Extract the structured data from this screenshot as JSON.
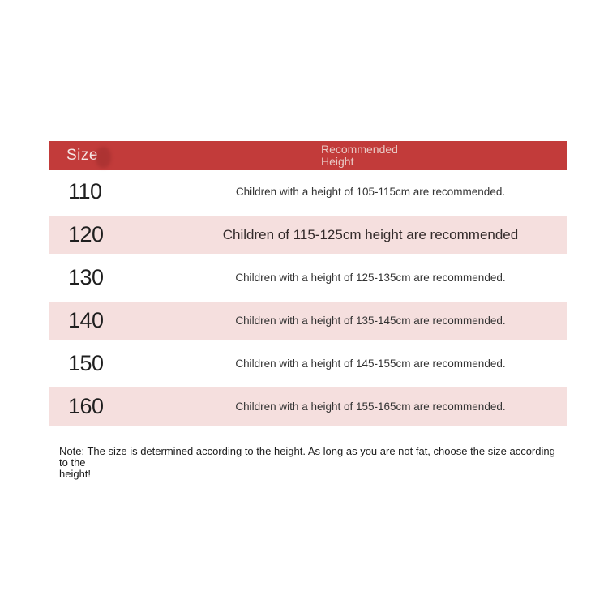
{
  "colors": {
    "page_bg": "#ffffff",
    "header_bg": "#c23b3a",
    "header_text": "#f4e6e4",
    "header_subtext": "#e9c9c5",
    "row_bg": "#ffffff",
    "row_alt_bg": "#f5dfde",
    "size_text": "#1f1f1f",
    "desc_text": "#333333",
    "note_text": "#1c1c1c"
  },
  "table": {
    "header": {
      "size_label": "Size",
      "recommended_line1": "Recommended",
      "recommended_line2": "Height"
    },
    "rows": [
      {
        "size": "110",
        "desc": "Children with a height of 105-115cm are recommended.",
        "highlight": false
      },
      {
        "size": "120",
        "desc": "Children of 115-125cm height are recommended",
        "highlight": true
      },
      {
        "size": "130",
        "desc": "Children with a height of 125-135cm are recommended.",
        "highlight": false
      },
      {
        "size": "140",
        "desc": "Children with a height of 135-145cm are recommended.",
        "highlight": true
      },
      {
        "size": "150",
        "desc": "Children with a height of 145-155cm are recommended.",
        "highlight": false
      },
      {
        "size": "160",
        "desc": "Children with a height of 155-165cm are recommended.",
        "highlight": true
      }
    ]
  },
  "note": {
    "line1": "Note: The size is determined according to the height. As long as you are not fat, choose the size according to the",
    "line2": "height!"
  },
  "chart_data": {
    "type": "table",
    "columns": [
      "Size",
      "Recommended Height"
    ],
    "rows": [
      [
        "110",
        "Children with a height of 105-115cm are recommended."
      ],
      [
        "120",
        "Children of 115-125cm height are recommended"
      ],
      [
        "130",
        "Children with a height of 125-135cm are recommended."
      ],
      [
        "140",
        "Children with a height of 135-145cm are recommended."
      ],
      [
        "150",
        "Children with a height of 145-155cm are recommended."
      ],
      [
        "160",
        "Children with a height of 155-165cm are recommended."
      ]
    ],
    "note": "Note: The size is determined according to the height. As long as you are not fat, choose the size according to the height!"
  }
}
